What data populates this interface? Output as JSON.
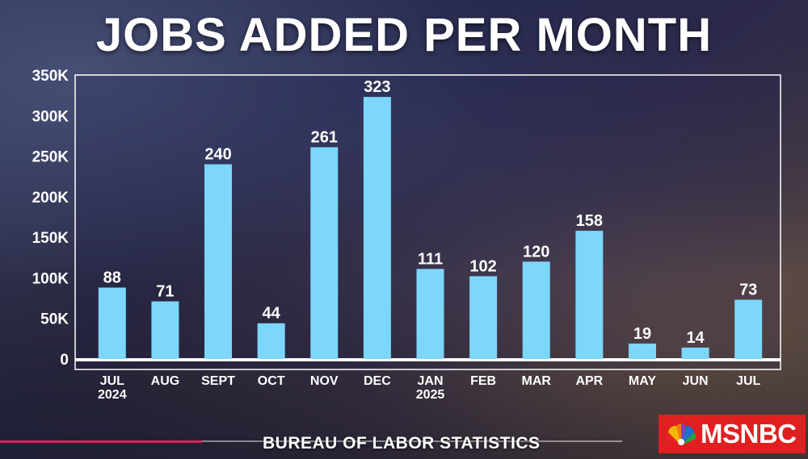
{
  "header": {
    "title": "JOBS ADDED PER MONTH"
  },
  "footer": {
    "source": "BUREAU OF LABOR STATISTICS"
  },
  "brand": {
    "logo_text": "MSNBC",
    "logo_color": "#e02020"
  },
  "colors": {
    "bar": "#7dd6fb",
    "text": "#ffffff"
  },
  "chart_data": {
    "type": "bar",
    "title": "JOBS ADDED PER MONTH",
    "xlabel": "",
    "ylabel": "",
    "categories": [
      "JUL 2024",
      "AUG",
      "SEPT",
      "OCT",
      "NOV",
      "DEC",
      "JAN 2025",
      "FEB",
      "MAR",
      "APR",
      "MAY",
      "JUN",
      "JUL"
    ],
    "category_lines": [
      [
        "JUL",
        "2024"
      ],
      [
        "AUG"
      ],
      [
        "SEPT"
      ],
      [
        "OCT"
      ],
      [
        "NOV"
      ],
      [
        "DEC"
      ],
      [
        "JAN",
        "2025"
      ],
      [
        "FEB"
      ],
      [
        "MAR"
      ],
      [
        "APR"
      ],
      [
        "MAY"
      ],
      [
        "JUN"
      ],
      [
        "JUL"
      ]
    ],
    "values": [
      88,
      71,
      240,
      44,
      261,
      323,
      111,
      102,
      120,
      158,
      19,
      14,
      73
    ],
    "data_labels": [
      "88",
      "71",
      "240",
      "44",
      "261",
      "323",
      "111",
      "102",
      "120",
      "158",
      "19",
      "14",
      "73"
    ],
    "y_ticks": [
      0,
      50,
      100,
      150,
      200,
      250,
      300,
      350
    ],
    "y_tick_labels": [
      "0",
      "50K",
      "100K",
      "150K",
      "200K",
      "250K",
      "300K",
      "350K"
    ],
    "ylim": [
      0,
      350
    ],
    "grid": false,
    "legend": "none"
  }
}
